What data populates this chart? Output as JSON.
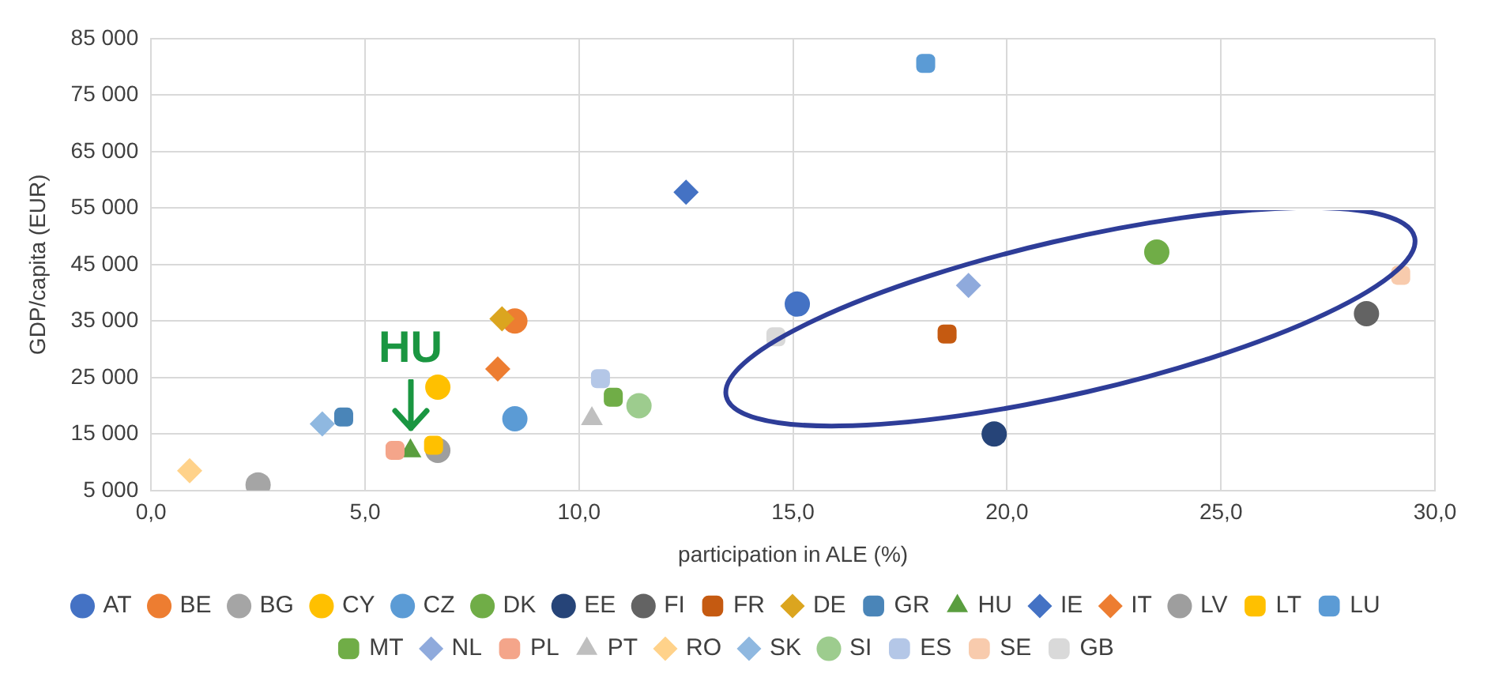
{
  "chart_data": {
    "type": "scatter",
    "xlabel": "participation in ALE (%)",
    "ylabel": "GDP/capita (EUR)",
    "xlim": [
      0,
      30
    ],
    "xticks": [
      {
        "value": 0,
        "label": "0,0"
      },
      {
        "value": 5,
        "label": "5,0"
      },
      {
        "value": 10,
        "label": "10,0"
      },
      {
        "value": 15,
        "label": "15,0"
      },
      {
        "value": 20,
        "label": "20,0"
      },
      {
        "value": 25,
        "label": "25,0"
      },
      {
        "value": 30,
        "label": "30,0"
      }
    ],
    "ylim": [
      5000,
      85000
    ],
    "yticks": [
      {
        "value": 5000,
        "label": "5 000"
      },
      {
        "value": 15000,
        "label": "15 000"
      },
      {
        "value": 25000,
        "label": "25 000"
      },
      {
        "value": 35000,
        "label": "35 000"
      },
      {
        "value": 45000,
        "label": "45 000"
      },
      {
        "value": 55000,
        "label": "55 000"
      },
      {
        "value": 65000,
        "label": "65 000"
      },
      {
        "value": 75000,
        "label": "75 000"
      },
      {
        "value": 85000,
        "label": "85 000"
      }
    ],
    "grid": true,
    "legend": "bottom",
    "annotations": [
      {
        "text": "HU",
        "x": 6.06,
        "y": 12000
      }
    ],
    "series": [
      {
        "name": "AT",
        "color": "#4472c4",
        "marker": "circle",
        "x": [
          15.1
        ],
        "values": [
          38000
        ]
      },
      {
        "name": "BE",
        "color": "#ed7d31",
        "marker": "circle",
        "x": [
          8.5
        ],
        "values": [
          35000
        ]
      },
      {
        "name": "BG",
        "color": "#a5a5a5",
        "marker": "circle",
        "x": [
          2.5
        ],
        "values": [
          6000
        ]
      },
      {
        "name": "CY",
        "color": "#ffc000",
        "marker": "circle",
        "x": [
          6.7
        ],
        "values": [
          23300
        ]
      },
      {
        "name": "CZ",
        "color": "#5b9bd5",
        "marker": "circle",
        "x": [
          8.5
        ],
        "values": [
          17700
        ]
      },
      {
        "name": "DK",
        "color": "#70ad47",
        "marker": "circle",
        "x": [
          23.5
        ],
        "values": [
          47200
        ]
      },
      {
        "name": "EE",
        "color": "#264478",
        "marker": "circle",
        "x": [
          19.7
        ],
        "values": [
          15000
        ]
      },
      {
        "name": "FI",
        "color": "#636363",
        "marker": "circle",
        "x": [
          28.4
        ],
        "values": [
          36300
        ]
      },
      {
        "name": "FR",
        "color": "#c55a11",
        "marker": "square",
        "x": [
          18.6
        ],
        "values": [
          32700
        ]
      },
      {
        "name": "DE",
        "color": "#dba51f",
        "marker": "diamond",
        "x": [
          8.2
        ],
        "values": [
          35400
        ]
      },
      {
        "name": "GR",
        "color": "#4a85b8",
        "marker": "square",
        "x": [
          4.5
        ],
        "values": [
          18000
        ]
      },
      {
        "name": "HU",
        "color": "#5a9e3f",
        "marker": "triangle",
        "x": [
          6.06
        ],
        "values": [
          12000
        ]
      },
      {
        "name": "IE",
        "color": "#4472c4",
        "marker": "diamond",
        "x": [
          12.5
        ],
        "values": [
          57800
        ]
      },
      {
        "name": "IT",
        "color": "#ed7d31",
        "marker": "diamond",
        "x": [
          8.1
        ],
        "values": [
          26500
        ]
      },
      {
        "name": "LV",
        "color": "#9e9e9e",
        "marker": "circle",
        "x": [
          6.7
        ],
        "values": [
          12100
        ]
      },
      {
        "name": "LT",
        "color": "#ffc000",
        "marker": "square",
        "x": [
          6.6
        ],
        "values": [
          13000
        ]
      },
      {
        "name": "LU",
        "color": "#5b9bd5",
        "marker": "square",
        "x": [
          18.1
        ],
        "values": [
          80600
        ]
      },
      {
        "name": "MT",
        "color": "#70ad47",
        "marker": "square",
        "x": [
          10.8
        ],
        "values": [
          21500
        ]
      },
      {
        "name": "NL",
        "color": "#8faadc",
        "marker": "diamond",
        "x": [
          19.1
        ],
        "values": [
          41300
        ]
      },
      {
        "name": "PL",
        "color": "#f4a58a",
        "marker": "square",
        "x": [
          5.7
        ],
        "values": [
          12100
        ]
      },
      {
        "name": "PT",
        "color": "#bfbfbf",
        "marker": "triangle",
        "x": [
          10.3
        ],
        "values": [
          17700
        ]
      },
      {
        "name": "RO",
        "color": "#ffd28a",
        "marker": "diamond",
        "x": [
          0.9
        ],
        "values": [
          8500
        ]
      },
      {
        "name": "SK",
        "color": "#8fb8e0",
        "marker": "diamond",
        "x": [
          4.0
        ],
        "values": [
          16800
        ]
      },
      {
        "name": "SI",
        "color": "#9dcc8e",
        "marker": "circle",
        "x": [
          11.4
        ],
        "values": [
          20000
        ]
      },
      {
        "name": "ES",
        "color": "#b4c7e7",
        "marker": "square",
        "x": [
          10.5
        ],
        "values": [
          24800
        ]
      },
      {
        "name": "SE",
        "color": "#f8cbad",
        "marker": "square",
        "x": [
          29.2
        ],
        "values": [
          43100
        ]
      },
      {
        "name": "GB",
        "color": "#d9d9d9",
        "marker": "square",
        "x": [
          14.6
        ],
        "values": [
          32200
        ]
      }
    ]
  }
}
